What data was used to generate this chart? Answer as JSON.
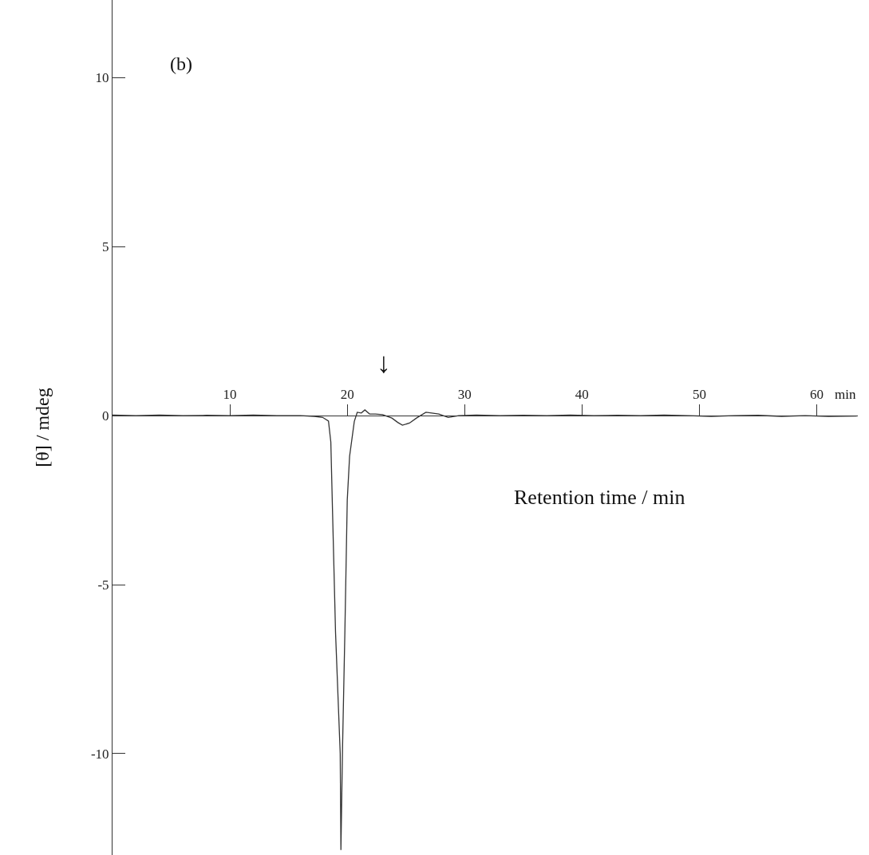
{
  "chart_data": {
    "type": "line",
    "xlabel": "Retention time / min",
    "ylabel": "[θ] / mdeg",
    "annotations": [
      "(b)",
      "min",
      "↓"
    ],
    "x": [
      0,
      2,
      4,
      6,
      8,
      10,
      12,
      14,
      16,
      17.2,
      17.9,
      18.4,
      18.6,
      18.75,
      19.0,
      19.4,
      19.46,
      19.6,
      19.8,
      20.0,
      20.2,
      20.6,
      20.85,
      21.2,
      21.5,
      21.9,
      22.4,
      23.0,
      23.8,
      24.3,
      24.7,
      25.3,
      25.9,
      26.7,
      27.2,
      27.8,
      28.6,
      29.5,
      31,
      33,
      35,
      37,
      39,
      41,
      43,
      45,
      47,
      49,
      51,
      53,
      55,
      57,
      59,
      61,
      63.4
    ],
    "values": [
      0.02,
      0.0,
      0.02,
      0.0,
      0.01,
      0.0,
      0.02,
      0.0,
      0.0,
      -0.02,
      -0.05,
      -0.16,
      -0.78,
      -2.9,
      -6.4,
      -10.0,
      -12.85,
      -9.8,
      -6.35,
      -2.5,
      -1.2,
      -0.17,
      0.1,
      0.08,
      0.17,
      0.05,
      0.05,
      0.03,
      -0.07,
      -0.2,
      -0.28,
      -0.22,
      -0.07,
      0.1,
      0.08,
      0.05,
      -0.05,
      0.0,
      0.02,
      0.0,
      0.01,
      0.0,
      0.02,
      0.0,
      0.01,
      0.0,
      0.02,
      0.0,
      -0.02,
      0.0,
      0.01,
      -0.02,
      0.0,
      -0.02,
      -0.01
    ],
    "color": "#333333",
    "line_style": "solid",
    "marker": "none",
    "xlim": [
      0,
      63.5
    ],
    "ylim": [
      -13.0,
      12.3
    ],
    "xticks": [
      10,
      20,
      30,
      40,
      50,
      60
    ],
    "yticks": [
      -10,
      -5,
      0,
      5,
      10
    ]
  }
}
